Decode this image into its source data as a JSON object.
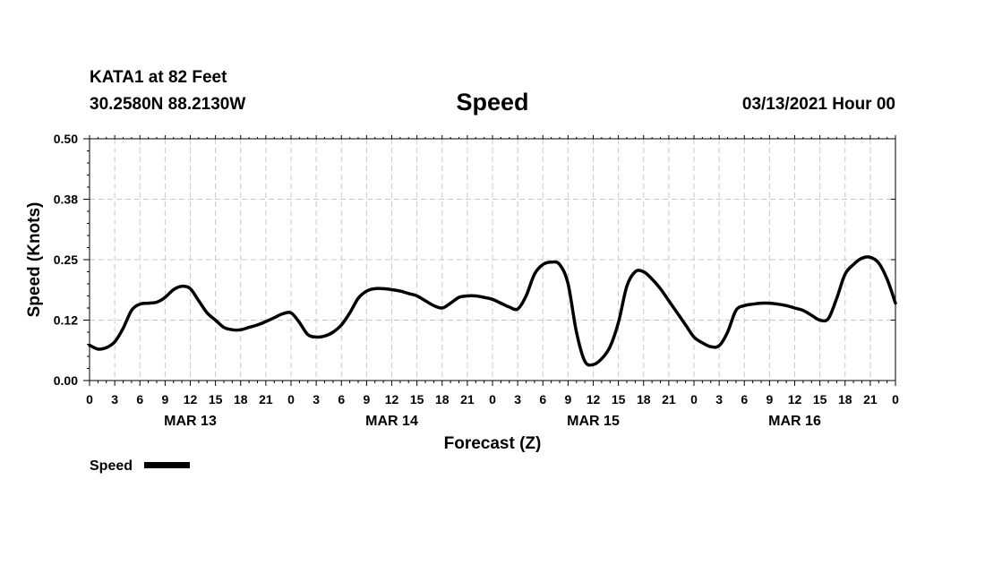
{
  "header": {
    "station": "KATA1 at 82 Feet",
    "coords": "30.2580N 88.2130W",
    "datetime": "03/13/2021 Hour 00"
  },
  "chart_data": {
    "type": "line",
    "title": "Speed",
    "xlabel": "Forecast (Z)",
    "ylabel": "Speed (Knots)",
    "ylim": [
      0,
      0.5
    ],
    "yticks": [
      0.0,
      0.125,
      0.25,
      0.375,
      0.5
    ],
    "ytick_labels": [
      "0.00",
      "0.12",
      "0.25",
      "0.38",
      "0.50"
    ],
    "xlim": [
      0,
      96
    ],
    "xticks_hours": [
      0,
      3,
      6,
      9,
      12,
      15,
      18,
      21,
      24,
      27,
      30,
      33,
      36,
      39,
      42,
      45,
      48,
      51,
      54,
      57,
      60,
      63,
      66,
      69,
      72,
      75,
      78,
      81,
      84,
      87,
      90,
      93,
      96
    ],
    "xtick_labels": [
      "0",
      "3",
      "6",
      "9",
      "12",
      "15",
      "18",
      "21",
      "0",
      "3",
      "6",
      "9",
      "12",
      "15",
      "18",
      "21",
      "0",
      "3",
      "6",
      "9",
      "12",
      "15",
      "18",
      "21",
      "0",
      "3",
      "6",
      "9",
      "12",
      "15",
      "18",
      "21",
      "0"
    ],
    "day_labels": [
      {
        "hour": 12,
        "label": "MAR 13"
      },
      {
        "hour": 36,
        "label": "MAR 14"
      },
      {
        "hour": 60,
        "label": "MAR 15"
      },
      {
        "hour": 84,
        "label": "MAR 16"
      }
    ],
    "grid": true,
    "legend": {
      "position": "bottom-left",
      "label": "Speed"
    },
    "series": [
      {
        "name": "Speed",
        "color": "#000000",
        "x": [
          0,
          1,
          2,
          3,
          4,
          5,
          6,
          7,
          8,
          9,
          10,
          11,
          12,
          13,
          14,
          15,
          16,
          17,
          18,
          19,
          20,
          21,
          22,
          23,
          24,
          25,
          26,
          27,
          28,
          29,
          30,
          31,
          32,
          33,
          34,
          35,
          36,
          37,
          38,
          39,
          40,
          41,
          42,
          43,
          44,
          45,
          46,
          47,
          48,
          49,
          50,
          51,
          52,
          53,
          54,
          55,
          56,
          57,
          58,
          59,
          60,
          61,
          62,
          63,
          64,
          65,
          66,
          67,
          68,
          69,
          70,
          71,
          72,
          73,
          74,
          75,
          76,
          77,
          78,
          79,
          80,
          81,
          82,
          83,
          84,
          85,
          86,
          87,
          88,
          89,
          90,
          91,
          92,
          93,
          94,
          95,
          96
        ],
        "values": [
          0.073,
          0.065,
          0.068,
          0.08,
          0.108,
          0.145,
          0.158,
          0.16,
          0.162,
          0.172,
          0.188,
          0.195,
          0.19,
          0.165,
          0.14,
          0.125,
          0.11,
          0.105,
          0.105,
          0.11,
          0.115,
          0.122,
          0.13,
          0.138,
          0.14,
          0.12,
          0.095,
          0.09,
          0.092,
          0.1,
          0.115,
          0.14,
          0.17,
          0.185,
          0.19,
          0.19,
          0.188,
          0.185,
          0.18,
          0.175,
          0.165,
          0.155,
          0.15,
          0.16,
          0.172,
          0.175,
          0.175,
          0.172,
          0.168,
          0.16,
          0.152,
          0.148,
          0.175,
          0.22,
          0.24,
          0.245,
          0.24,
          0.2,
          0.1,
          0.04,
          0.033,
          0.045,
          0.07,
          0.12,
          0.195,
          0.225,
          0.225,
          0.21,
          0.19,
          0.165,
          0.14,
          0.115,
          0.09,
          0.078,
          0.07,
          0.072,
          0.1,
          0.145,
          0.155,
          0.158,
          0.16,
          0.16,
          0.158,
          0.155,
          0.15,
          0.145,
          0.135,
          0.125,
          0.128,
          0.17,
          0.22,
          0.24,
          0.253,
          0.255,
          0.243,
          0.21,
          0.16
        ]
      }
    ]
  }
}
